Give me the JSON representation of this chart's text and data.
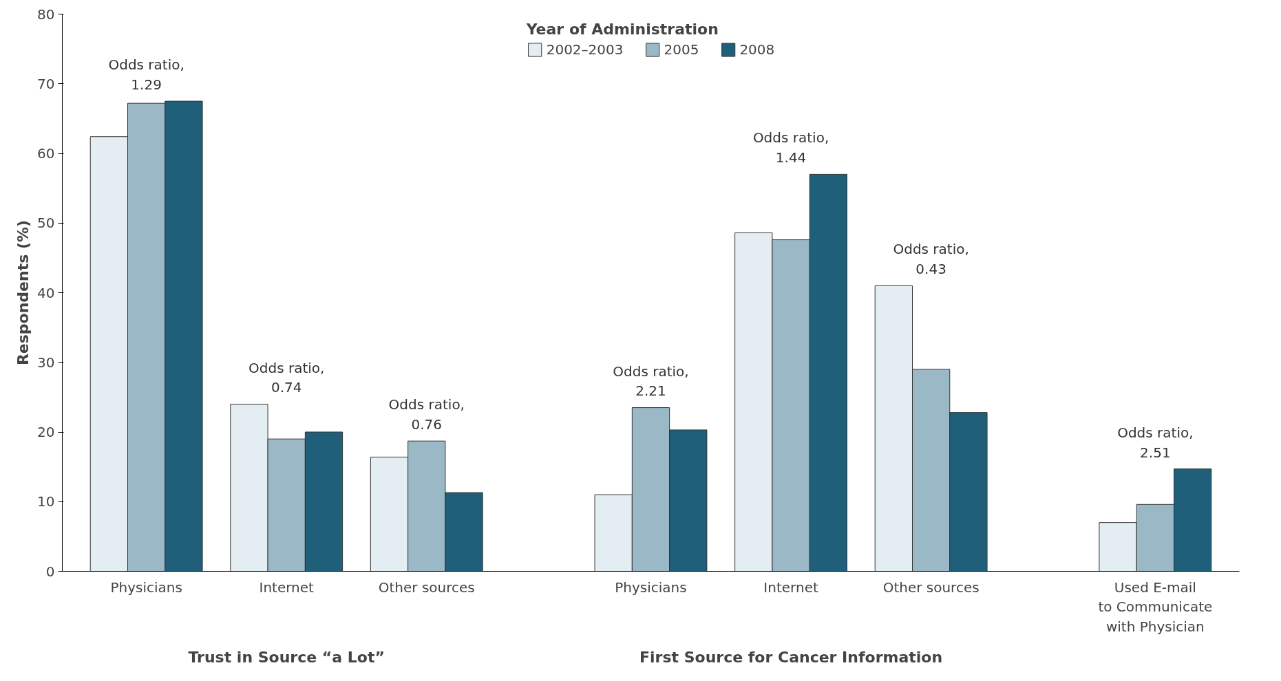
{
  "chart_data": {
    "type": "bar",
    "ylabel": "Respondents (%)",
    "legend_title": "Year of Administration",
    "categories": [
      "Physicians",
      "Internet",
      "Other sources",
      "Physicians",
      "Internet",
      "Other sources",
      "Used E-mail\nto Communicate\nwith Physician"
    ],
    "series": [
      {
        "name": "2002–2003",
        "color": "#e3edf2",
        "values": [
          62.4,
          24,
          16.4,
          11,
          48.6,
          41,
          7
        ]
      },
      {
        "name": "2005",
        "color": "#9bb8c6",
        "values": [
          67.2,
          19,
          18.7,
          23.5,
          47.6,
          29,
          9.6
        ]
      },
      {
        "name": "2008",
        "color": "#1f5f7a",
        "values": [
          67.5,
          20,
          11.3,
          20.3,
          57,
          22.8,
          14.7
        ]
      }
    ],
    "annotations": [
      "Odds ratio,\n1.29",
      "Odds ratio,\n0.74",
      "Odds ratio,\n0.76",
      "Odds ratio,\n2.21",
      "Odds ratio,\n1.44",
      "Odds ratio,\n0.43",
      "Odds ratio,\n2.51",
      "Trust in Source “a Lot”",
      "First Source for Cancer Information"
    ],
    "ylim": [
      0,
      80
    ],
    "yticks": [
      0,
      10,
      20,
      30,
      40,
      50,
      60,
      70,
      80
    ],
    "grid": false,
    "legend": "top"
  }
}
